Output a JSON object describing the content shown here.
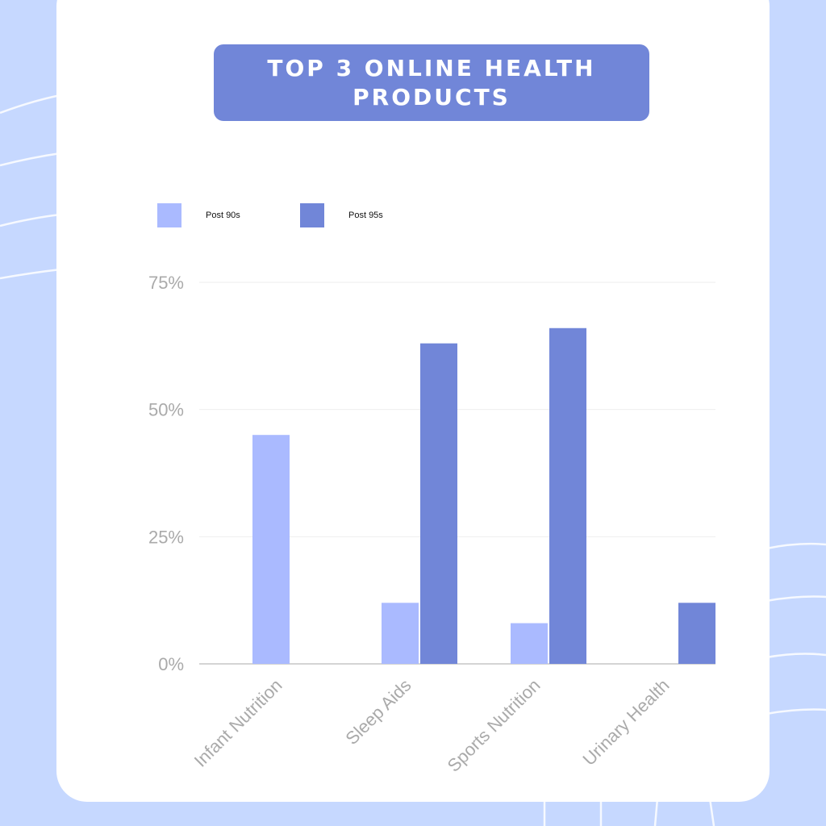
{
  "title": "TOP 3 ONLINE HEALTH PRODUCTS",
  "colors": {
    "background": "#c6d8ff",
    "card": "#ffffff",
    "title_box": "#7186d8",
    "series_post90s": "#aabaff",
    "series_post95s": "#7186d8",
    "axis_text": "#aaaaaa",
    "grid": "#eeeeee"
  },
  "legend": [
    {
      "label": "Post 90s",
      "color": "#aabaff"
    },
    {
      "label": "Post 95s",
      "color": "#7186d8"
    }
  ],
  "chart_data": {
    "type": "bar",
    "categories": [
      "Infant Nutrition",
      "Sleep Aids",
      "Sports Nutrition",
      "Urinary Health"
    ],
    "series": [
      {
        "name": "Post 90s",
        "values": [
          45,
          12,
          8,
          0
        ]
      },
      {
        "name": "Post 95s",
        "values": [
          0,
          63,
          66,
          12
        ]
      }
    ],
    "yticks": [
      "0%",
      "25%",
      "50%",
      "75%"
    ],
    "ylim": [
      0,
      75
    ],
    "xlabel": "",
    "ylabel": "",
    "grid": true,
    "legend_position": "top-left"
  }
}
